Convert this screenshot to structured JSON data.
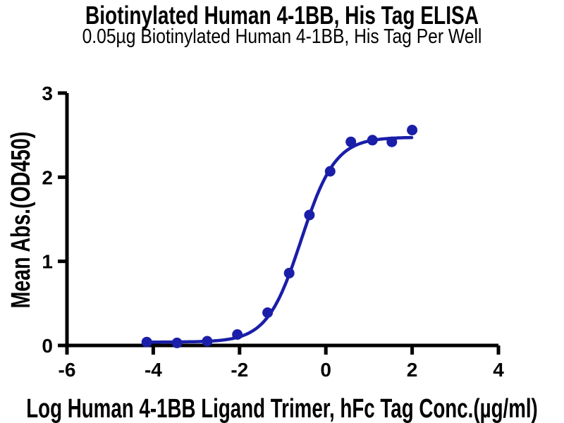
{
  "chart_data": {
    "type": "scatter",
    "title": "Biotinylated Human 4-1BB, His Tag ELISA",
    "subtitle": "0.05µg Biotinylated Human 4-1BB, His Tag Per Well",
    "xlabel": "Log Human 4-1BB Ligand Trimer, hFc Tag Conc.(µg/ml)",
    "ylabel": "Mean Abs.(OD450)",
    "x_range": [
      -6,
      4
    ],
    "y_range": [
      0,
      3
    ],
    "x_ticks": [
      -6,
      -4,
      -2,
      0,
      2,
      4
    ],
    "y_ticks": [
      0,
      1,
      2,
      3
    ],
    "grid": false,
    "legend_position": "none",
    "axis_color": "#000000",
    "series": [
      {
        "color": "#1a1ea8",
        "marker": "circle",
        "points": [
          {
            "x": -4.15,
            "y": 0.04
          },
          {
            "x": -3.45,
            "y": 0.03
          },
          {
            "x": -2.75,
            "y": 0.05
          },
          {
            "x": -2.05,
            "y": 0.13
          },
          {
            "x": -1.35,
            "y": 0.39
          },
          {
            "x": -0.85,
            "y": 0.86
          },
          {
            "x": -0.38,
            "y": 1.55
          },
          {
            "x": 0.1,
            "y": 2.07
          },
          {
            "x": 0.58,
            "y": 2.42
          },
          {
            "x": 1.08,
            "y": 2.44
          },
          {
            "x": 1.53,
            "y": 2.42
          },
          {
            "x": 2.0,
            "y": 2.56
          }
        ]
      }
    ],
    "fit_curve": {
      "model": "4PL",
      "color": "#1a1ea8",
      "bottom": 0.04,
      "top": 2.475,
      "hill_slope": 1.1,
      "log_ec50": -0.57,
      "x_start": -4.17,
      "x_end": 2.0
    }
  }
}
